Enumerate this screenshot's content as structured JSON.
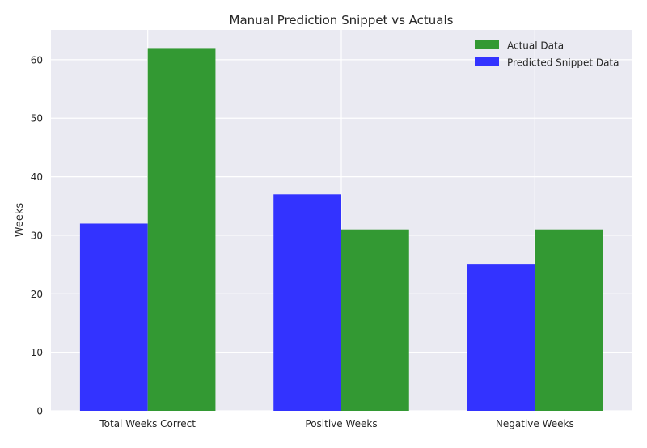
{
  "chart_data": {
    "type": "bar",
    "title": "Manual Prediction Snippet vs Actuals",
    "xlabel": "",
    "ylabel": "Weeks",
    "categories": [
      "Total Weeks Correct",
      "Positive Weeks",
      "Negative Weeks"
    ],
    "series": [
      {
        "name": "Predicted Snippet Data",
        "values": [
          32,
          37,
          25
        ],
        "color": "#3333ff"
      },
      {
        "name": "Actual Data",
        "values": [
          62,
          31,
          31
        ],
        "color": "#339933"
      }
    ],
    "ylim": [
      0,
      65.1
    ],
    "yticks": [
      0,
      10,
      20,
      30,
      40,
      50,
      60
    ],
    "legend_order": [
      "Actual Data",
      "Predicted Snippet Data"
    ],
    "grid": true,
    "legend": "top-right",
    "background_color": "#eaeaf2",
    "grid_color": "#ffffff"
  }
}
